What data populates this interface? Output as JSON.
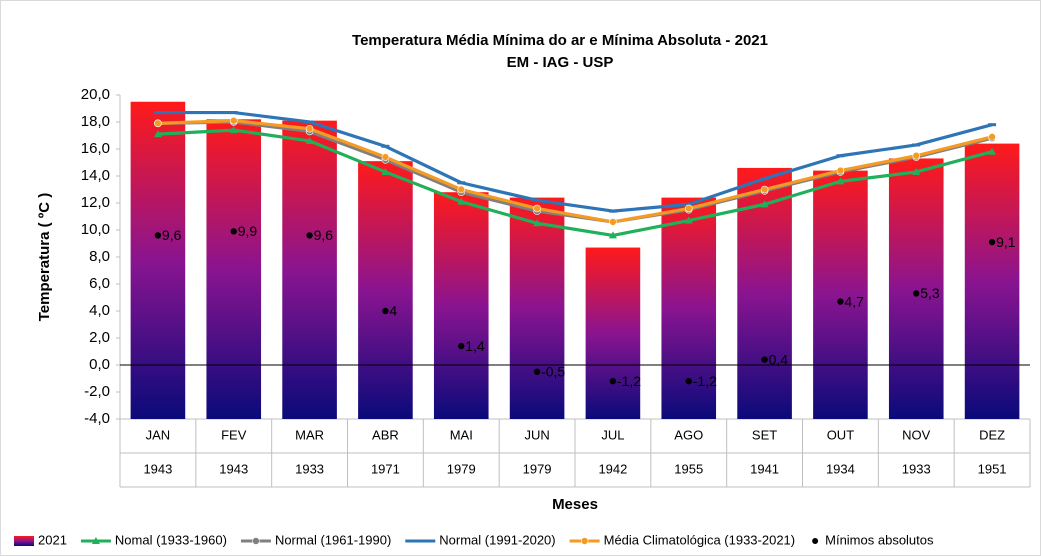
{
  "chart_data": {
    "type": "bar-line",
    "title": "Temperatura Média Mínima do ar e Mínima Absoluta - 2021",
    "subtitle": "EM - IAG - USP",
    "x_label": "Meses",
    "y_label": "Temperatura ( ºC )",
    "categories": [
      "JAN",
      "FEV",
      "MAR",
      "ABR",
      "MAI",
      "JUN",
      "JUL",
      "AGO",
      "SET",
      "OUT",
      "NOV",
      "DEZ"
    ],
    "min_years": [
      "1943",
      "1943",
      "1933",
      "1971",
      "1979",
      "1979",
      "1942",
      "1955",
      "1941",
      "1934",
      "1933",
      "1951"
    ],
    "ylim": [
      -4,
      20
    ],
    "yticks": [
      {
        "value": -4,
        "label": "-4,0"
      },
      {
        "value": -2,
        "label": "-2,0"
      },
      {
        "value": 0,
        "label": "0,0"
      },
      {
        "value": 2,
        "label": "2,0"
      },
      {
        "value": 4,
        "label": "4,0"
      },
      {
        "value": 6,
        "label": "6,0"
      },
      {
        "value": 8,
        "label": "8,0"
      },
      {
        "value": 10,
        "label": "10,0"
      },
      {
        "value": 12,
        "label": "12,0"
      },
      {
        "value": 14,
        "label": "14,0"
      },
      {
        "value": 16,
        "label": "16,0"
      },
      {
        "value": 18,
        "label": "18,0"
      },
      {
        "value": 20,
        "label": "20,0"
      }
    ],
    "series": [
      {
        "name": "2021",
        "kind": "bar",
        "color": "#ff0000",
        "values": [
          19.5,
          18.2,
          18.1,
          15.1,
          12.8,
          12.4,
          8.7,
          12.4,
          14.6,
          14.4,
          15.3,
          16.4
        ]
      },
      {
        "name": "Nomal (1933-1960)",
        "kind": "line",
        "marker": "triangle",
        "color": "#21b05a",
        "values": [
          17.1,
          17.4,
          16.6,
          14.3,
          12.1,
          10.5,
          9.6,
          10.7,
          11.9,
          13.6,
          14.3,
          15.8
        ]
      },
      {
        "name": "Normal (1961-1990)",
        "kind": "line",
        "marker": "circle",
        "color": "#808080",
        "values": [
          17.9,
          18.0,
          17.3,
          15.2,
          12.8,
          11.4,
          10.6,
          11.5,
          12.9,
          14.3,
          15.4,
          16.8
        ]
      },
      {
        "name": "Normal (1991-2020)",
        "kind": "line",
        "marker": "dash",
        "color": "#2e75b6",
        "values": [
          18.7,
          18.7,
          18.0,
          16.2,
          13.5,
          12.2,
          11.4,
          11.9,
          13.8,
          15.5,
          16.3,
          17.8
        ]
      },
      {
        "name": "Média Climatológica (1933-2021)",
        "kind": "line",
        "marker": "circle",
        "color": "#f59a23",
        "values": [
          17.9,
          18.1,
          17.5,
          15.4,
          13.0,
          11.6,
          10.6,
          11.6,
          13.0,
          14.4,
          15.5,
          16.9
        ]
      },
      {
        "name": "Mínimos absolutos",
        "kind": "dot",
        "color": "#000000",
        "values": [
          9.6,
          9.9,
          9.6,
          4,
          1.4,
          -0.5,
          -1.2,
          -1.2,
          0.4,
          4.7,
          5.3,
          9.1
        ],
        "value_labels": [
          "9,6",
          "9,9",
          "9,6",
          "4",
          "1,4",
          "-0,5",
          "-1,2",
          "-1,2",
          "0,4",
          "4,7",
          "5,3",
          "9,1"
        ]
      }
    ]
  }
}
